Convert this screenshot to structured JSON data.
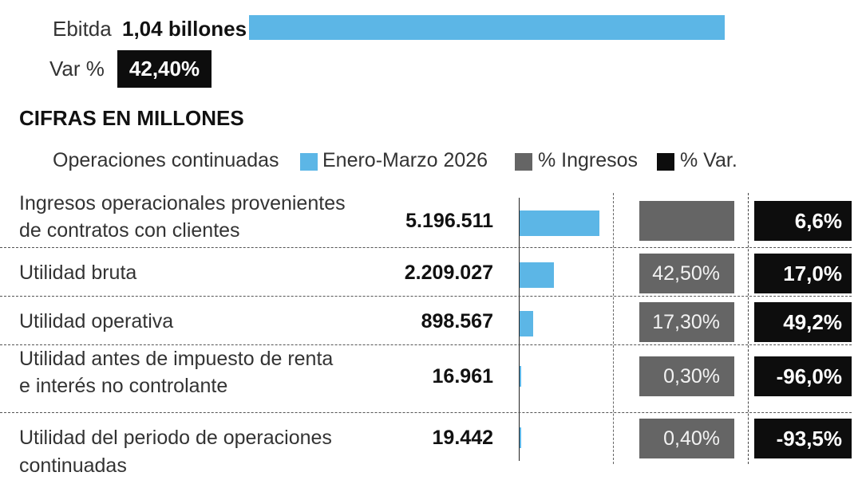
{
  "header": {
    "ebitda_label": "Ebitda",
    "ebitda_value": "1,04 billones",
    "var_label": "Var %",
    "var_value": "42,40%"
  },
  "section_title": "CIFRAS EN MILLONES",
  "legend": {
    "group_label": "Operaciones continuadas",
    "series1": "Enero-Marzo 2026",
    "series2": "% Ingresos",
    "series3": "% Var."
  },
  "colors": {
    "accent_blue": "#5cb6e6",
    "gray_box": "#656565",
    "black_box": "#0d0d0d"
  },
  "chart_data": {
    "type": "bar",
    "title": "",
    "categories": [
      "Ingresos operacionales provenientes de contratos con clientes",
      "Utilidad bruta",
      "Utilidad operativa",
      "Utilidad antes de impuesto de renta e interés no controlante",
      "Utilidad del periodo de operaciones continuadas"
    ],
    "values": [
      5196511,
      2209027,
      898567,
      16961,
      19442
    ],
    "value_labels": [
      "5.196.511",
      "2.209.027",
      "898.567",
      "16.961",
      "19.442"
    ],
    "pct_ingresos": [
      "",
      "42,50%",
      "17,30%",
      "0,30%",
      "0,40%"
    ],
    "pct_var": [
      "6,6%",
      "17,0%",
      "49,2%",
      "-96,0%",
      "-93,5%"
    ],
    "unit": "millones"
  },
  "rows": [
    {
      "label1": "Ingresos operacionales provenientes",
      "label2": "de contratos con clientes"
    },
    {
      "label1": "Utilidad bruta",
      "label2": ""
    },
    {
      "label1": "Utilidad operativa",
      "label2": ""
    },
    {
      "label1": "Utilidad antes de impuesto de renta",
      "label2": "e interés no controlante"
    },
    {
      "label1": "Utilidad del periodo de operaciones continuadas",
      "label2": ""
    }
  ]
}
